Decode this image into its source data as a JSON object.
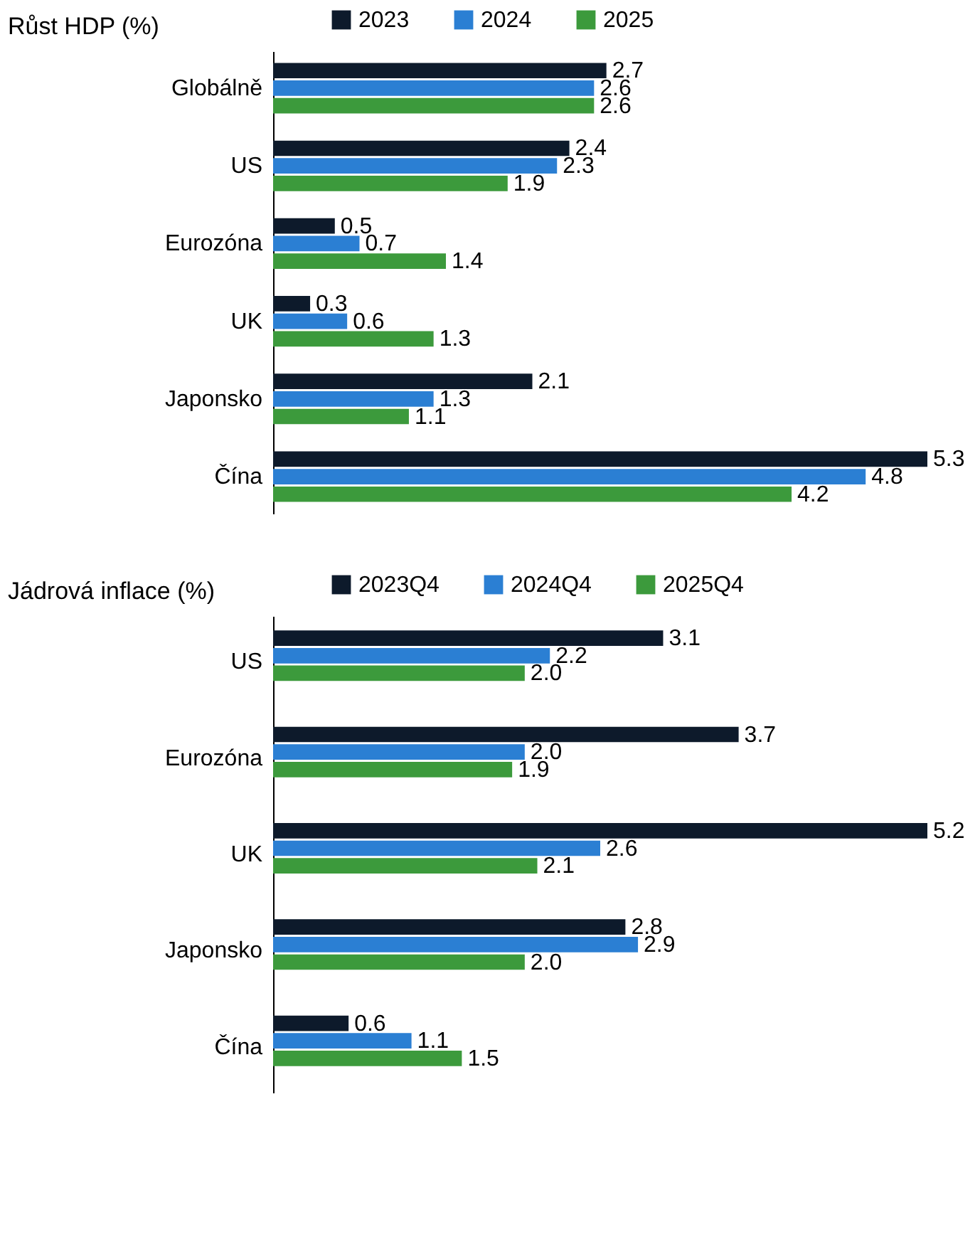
{
  "chart_data": [
    {
      "type": "bar",
      "orientation": "horizontal",
      "title": "Růst HDP (%)",
      "categories": [
        "Globálně",
        "US",
        "Eurozóna",
        "UK",
        "Japonsko",
        "Čína"
      ],
      "series": [
        {
          "name": "2023",
          "color": "#0d1a2b",
          "values": [
            2.7,
            2.4,
            0.5,
            0.3,
            2.1,
            5.3
          ],
          "value_labels": [
            "2.7",
            "2.4",
            "0.5",
            "0.3",
            "2.1",
            "5.3"
          ]
        },
        {
          "name": "2024",
          "color": "#2b7fd3",
          "values": [
            2.6,
            2.3,
            0.7,
            0.6,
            1.3,
            4.8
          ],
          "value_labels": [
            "2.6",
            "2.3",
            "0.7",
            "0.6",
            "1.3",
            "4.8"
          ]
        },
        {
          "name": "2025",
          "color": "#3c9a3c",
          "values": [
            2.6,
            1.9,
            1.4,
            1.3,
            1.1,
            4.2
          ],
          "value_labels": [
            "2.6",
            "1.9",
            "1.4",
            "1.3",
            "1.1",
            "4.2"
          ]
        }
      ],
      "tick_labels": "y",
      "legend": "top",
      "grid": false
    },
    {
      "type": "bar",
      "orientation": "horizontal",
      "title": "Jádrová inflace (%)",
      "categories": [
        "US",
        "Eurozóna",
        "UK",
        "Japonsko",
        "Čína"
      ],
      "series": [
        {
          "name": "2023Q4",
          "color": "#0d1a2b",
          "values": [
            3.1,
            3.7,
            5.2,
            2.8,
            0.6
          ],
          "value_labels": [
            "3.1",
            "3.7",
            "5.2",
            "2.8",
            "0.6"
          ]
        },
        {
          "name": "2024Q4",
          "color": "#2b7fd3",
          "values": [
            2.2,
            2.0,
            2.6,
            2.9,
            1.1
          ],
          "value_labels": [
            "2.2",
            "2.0",
            "2.6",
            "2.9",
            "1.1"
          ]
        },
        {
          "name": "2025Q4",
          "color": "#3c9a3c",
          "values": [
            2.0,
            1.9,
            2.1,
            2.0,
            1.5
          ],
          "value_labels": [
            "2.0",
            "1.9",
            "2.1",
            "2.0",
            "1.5"
          ]
        }
      ],
      "tick_labels": "y",
      "legend": "top",
      "grid": false
    }
  ]
}
